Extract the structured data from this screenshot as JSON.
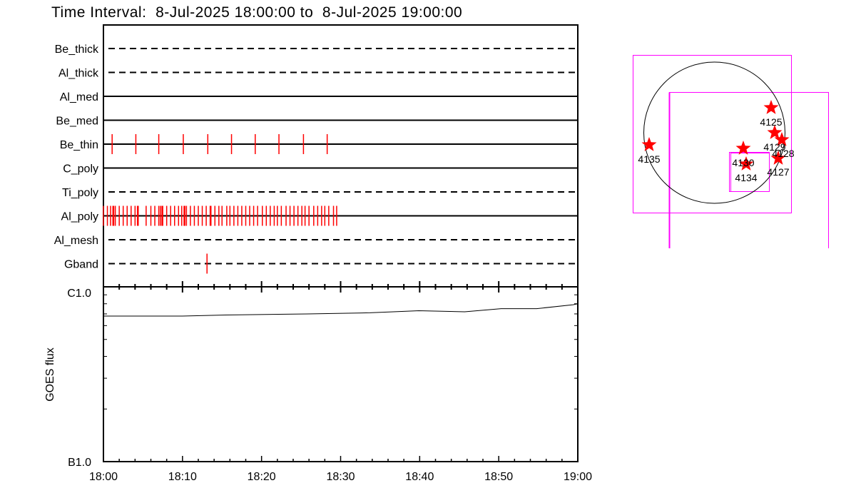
{
  "title": "Time Interval:  8-Jul-2025 18:00:00 to  8-Jul-2025 19:00:00",
  "colors": {
    "marks": "#ff0000",
    "boxes": "#ff00ff",
    "axes": "#000000"
  },
  "chart_data": [
    {
      "type": "timeline",
      "x_range": [
        "18:00",
        "19:00"
      ],
      "x_unit": "minutes after 18:00",
      "rows": [
        {
          "name": "Be_thick",
          "line": "dashed",
          "times": []
        },
        {
          "name": "Al_thick",
          "line": "dashed",
          "times": []
        },
        {
          "name": "Al_med",
          "line": "solid",
          "times": []
        },
        {
          "name": "Be_med",
          "line": "solid",
          "times": []
        },
        {
          "name": "Be_thin",
          "line": "solid",
          "times": [
            1.1,
            4.1,
            7.0,
            10.1,
            13.2,
            16.2,
            19.2,
            22.2,
            25.3,
            28.3
          ]
        },
        {
          "name": "C_poly",
          "line": "solid",
          "times": []
        },
        {
          "name": "Ti_poly",
          "line": "dashed",
          "times": []
        },
        {
          "name": "Al_poly",
          "line": "solid",
          "times": [
            0.0,
            0.5,
            0.9,
            1.2,
            1.3,
            1.5,
            2.0,
            2.5,
            3.0,
            3.5,
            4.0,
            4.3,
            4.4,
            5.4,
            6.0,
            6.5,
            7.0,
            7.2,
            7.4,
            7.5,
            8.0,
            8.5,
            9.0,
            9.5,
            9.9,
            10.2,
            10.3,
            10.5,
            11.0,
            11.5,
            12.0,
            12.5,
            13.0,
            13.5,
            13.6,
            14.1,
            14.6,
            15.0,
            15.6,
            16.0,
            16.5,
            17.0,
            17.5,
            18.0,
            18.5,
            19.0,
            19.5,
            20.1,
            20.6,
            21.1,
            21.6,
            22.0,
            22.5,
            23.1,
            23.6,
            24.1,
            24.6,
            25.1,
            25.5,
            26.0,
            26.6,
            27.1,
            27.6,
            28.0,
            28.5,
            29.1,
            29.5
          ]
        },
        {
          "name": "Al_mesh",
          "line": "dashed",
          "times": []
        },
        {
          "name": "Gband",
          "line": "dashed",
          "times": [
            13.1
          ]
        }
      ]
    },
    {
      "type": "line",
      "ylabel": "GOES flux",
      "yscale": "log",
      "ylim": [
        1e-07,
        1e-06
      ],
      "ytick_labels": [
        "B1.0",
        "C1.0"
      ],
      "xtick_labels": [
        "18:00",
        "18:10",
        "18:20",
        "18:30",
        "18:40",
        "18:50",
        "19:00"
      ],
      "x": [
        0,
        10,
        15.5,
        25.8,
        33.7,
        39.9,
        45.7,
        50.3,
        54.8,
        59.4,
        60
      ],
      "y": [
        6.8e-07,
        6.8e-07,
        6.9e-07,
        7e-07,
        7.1e-07,
        7.3e-07,
        7.2e-07,
        7.5e-07,
        7.5e-07,
        7.9e-07,
        8e-07
      ]
    },
    {
      "type": "map",
      "active_regions": [
        "4125",
        "4129",
        "4128",
        "4130",
        "4134",
        "4127",
        "4135"
      ]
    }
  ]
}
